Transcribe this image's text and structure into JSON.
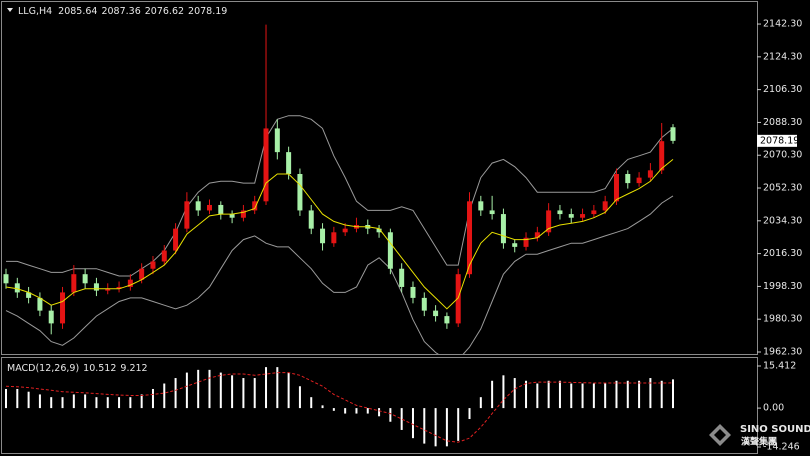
{
  "chart_data": {
    "type": "candlestick",
    "symbol": "LLG,H4",
    "header": {
      "open": 2085.64,
      "high": 2087.36,
      "low": 2076.62,
      "close": 2078.19
    },
    "up_color": "#e41414",
    "down_color": "#a8f0a8",
    "ma_color": "#e8e000",
    "band_color": "#9a9a9a",
    "ylim": [
      1961.2,
      2153.3
    ],
    "yticks": [
      {
        "value": 2142.3,
        "label": "2142.30"
      },
      {
        "value": 2124.3,
        "label": "2124.30"
      },
      {
        "value": 2106.3,
        "label": "2106.30"
      },
      {
        "value": 2088.3,
        "label": "2088.30"
      },
      {
        "value": 2070.3,
        "label": "2070.30"
      },
      {
        "value": 2052.3,
        "label": "2052.30"
      },
      {
        "value": 2034.3,
        "label": "2034.30"
      },
      {
        "value": 2016.3,
        "label": "2016.30"
      },
      {
        "value": 1998.3,
        "label": "1998.30"
      },
      {
        "value": 1980.3,
        "label": "1980.30"
      },
      {
        "value": 1962.3,
        "label": "1962.30"
      }
    ],
    "candles": [
      [
        2005,
        2008,
        1997,
        2000
      ],
      [
        2000,
        2003,
        1992,
        1995
      ],
      [
        1995,
        1998,
        1989,
        1992
      ],
      [
        1992,
        1995,
        1982,
        1985
      ],
      [
        1985,
        1988,
        1972,
        1978
      ],
      [
        1978,
        1998,
        1975,
        1995
      ],
      [
        1995,
        2010,
        1993,
        2005
      ],
      [
        2005,
        2008,
        1997,
        2000
      ],
      [
        2000,
        2003,
        1993,
        1996
      ],
      [
        1996,
        2000,
        1994,
        1997
      ],
      [
        1997,
        2001,
        1995,
        1998
      ],
      [
        1998,
        2005,
        1996,
        2002
      ],
      [
        2002,
        2011,
        2000,
        2008
      ],
      [
        2008,
        2015,
        2005,
        2012
      ],
      [
        2012,
        2021,
        2010,
        2018
      ],
      [
        2018,
        2033,
        2016,
        2030
      ],
      [
        2030,
        2050,
        2028,
        2045
      ],
      [
        2045,
        2048,
        2037,
        2040
      ],
      [
        2040,
        2046,
        2038,
        2043
      ],
      [
        2043,
        2045,
        2035,
        2038
      ],
      [
        2038,
        2040,
        2033,
        2036
      ],
      [
        2036,
        2043,
        2034,
        2040
      ],
      [
        2040,
        2048,
        2038,
        2045
      ],
      [
        2045,
        2142,
        2043,
        2085
      ],
      [
        2085,
        2090,
        2068,
        2072
      ],
      [
        2072,
        2075,
        2057,
        2060
      ],
      [
        2060,
        2063,
        2037,
        2040
      ],
      [
        2040,
        2043,
        2027,
        2030
      ],
      [
        2030,
        2033,
        2018,
        2022
      ],
      [
        2022,
        2031,
        2020,
        2028
      ],
      [
        2028,
        2033,
        2026,
        2030
      ],
      [
        2030,
        2036,
        2028,
        2032
      ],
      [
        2032,
        2035,
        2027,
        2030
      ],
      [
        2030,
        2032,
        2025,
        2028
      ],
      [
        2028,
        2030,
        2005,
        2008
      ],
      [
        2008,
        2011,
        1995,
        1998
      ],
      [
        1998,
        2001,
        1989,
        1992
      ],
      [
        1992,
        1995,
        1982,
        1985
      ],
      [
        1985,
        1988,
        1979,
        1982
      ],
      [
        1982,
        1984,
        1975,
        1978
      ],
      [
        1978,
        2008,
        1976,
        2005
      ],
      [
        2005,
        2050,
        2003,
        2045
      ],
      [
        2045,
        2048,
        2037,
        2040
      ],
      [
        2040,
        2048,
        2035,
        2038
      ],
      [
        2038,
        2041,
        2019,
        2022
      ],
      [
        2022,
        2024,
        2017,
        2020
      ],
      [
        2020,
        2028,
        2018,
        2025
      ],
      [
        2025,
        2031,
        2023,
        2028
      ],
      [
        2028,
        2044,
        2026,
        2040
      ],
      [
        2040,
        2043,
        2035,
        2038
      ],
      [
        2038,
        2041,
        2033,
        2036
      ],
      [
        2036,
        2041,
        2034,
        2038
      ],
      [
        2038,
        2043,
        2036,
        2040
      ],
      [
        2040,
        2048,
        2038,
        2045
      ],
      [
        2045,
        2063,
        2043,
        2060
      ],
      [
        2060,
        2062,
        2052,
        2055
      ],
      [
        2055,
        2061,
        2053,
        2058
      ],
      [
        2058,
        2066,
        2056,
        2062
      ],
      [
        2062,
        2088,
        2060,
        2078
      ],
      [
        2085.64,
        2087.36,
        2076.62,
        2078.19
      ]
    ],
    "ma": [
      1998,
      1997,
      1995,
      1992,
      1988,
      1990,
      1995,
      1997,
      1997,
      1997,
      1997,
      1999,
      2002,
      2006,
      2010,
      2017,
      2027,
      2032,
      2037,
      2038,
      2038,
      2039,
      2041,
      2055,
      2060,
      2060,
      2054,
      2046,
      2038,
      2034,
      2032,
      2031,
      2031,
      2030,
      2022,
      2014,
      2006,
      1998,
      1992,
      1986,
      1992,
      2010,
      2022,
      2028,
      2026,
      2024,
      2024,
      2025,
      2030,
      2032,
      2033,
      2034,
      2036,
      2039,
      2046,
      2049,
      2052,
      2056,
      2063,
      2068
    ],
    "bb_upper": [
      2012,
      2012,
      2010,
      2008,
      2006,
      2006,
      2008,
      2008,
      2008,
      2006,
      2004,
      2004,
      2008,
      2012,
      2018,
      2028,
      2042,
      2050,
      2055,
      2056,
      2056,
      2055,
      2055,
      2080,
      2090,
      2092,
      2092,
      2090,
      2085,
      2070,
      2058,
      2045,
      2040,
      2040,
      2040,
      2042,
      2040,
      2030,
      2020,
      2010,
      2010,
      2040,
      2058,
      2066,
      2068,
      2064,
      2058,
      2050,
      2050,
      2050,
      2050,
      2050,
      2050,
      2052,
      2062,
      2068,
      2070,
      2072,
      2080,
      2085
    ],
    "bb_lower": [
      1985,
      1982,
      1978,
      1974,
      1968,
      1966,
      1970,
      1976,
      1982,
      1986,
      1990,
      1992,
      1992,
      1990,
      1988,
      1986,
      1988,
      1992,
      1998,
      2008,
      2018,
      2024,
      2026,
      2022,
      2020,
      2020,
      2014,
      2008,
      2000,
      1995,
      1995,
      1998,
      2010,
      2014,
      2008,
      1995,
      1980,
      1968,
      1962,
      1958,
      1958,
      1965,
      1975,
      1990,
      2005,
      2012,
      2016,
      2016,
      2018,
      2020,
      2022,
      2022,
      2024,
      2026,
      2028,
      2030,
      2034,
      2038,
      2044,
      2048
    ],
    "macd": {
      "label": "MACD(12,26,9)",
      "value": 10.512,
      "signal_value": 9.212,
      "hist_color": "#ffffff",
      "signal_color": "#e02020",
      "ylim": [
        -16.44,
        18.34
      ],
      "yticks": [
        15.412,
        {
          "value": 0,
          "label": "0.00"
        },
        -14.246
      ],
      "histogram": [
        7,
        7,
        6,
        5,
        4,
        4,
        5,
        5,
        4,
        4,
        4,
        4,
        5,
        7,
        9,
        11,
        13,
        14,
        14,
        13,
        12,
        11,
        11,
        15,
        15,
        13,
        8,
        4,
        1,
        -1,
        -2,
        -2,
        -2,
        -3,
        -5,
        -8,
        -11,
        -13,
        -14,
        -14,
        -12,
        -4,
        4,
        10,
        12,
        11,
        10,
        9,
        10,
        10,
        9,
        9,
        9,
        9,
        10,
        10,
        10,
        11,
        10,
        10.512
      ],
      "signal": [
        8,
        7.8,
        7.5,
        7,
        6.5,
        6,
        5.8,
        5.6,
        5.3,
        5,
        4.8,
        4.6,
        4.6,
        5,
        5.5,
        6.5,
        8,
        9.5,
        11,
        12,
        12.5,
        12.5,
        12,
        12.5,
        13,
        13,
        12,
        10,
        8,
        5,
        3,
        1,
        0,
        -1,
        -2,
        -4,
        -6,
        -8,
        -10,
        -12,
        -12.5,
        -11,
        -7,
        -2,
        3,
        7,
        9,
        9.5,
        9.5,
        9.5,
        9.4,
        9.3,
        9.2,
        9.2,
        9.2,
        9.2,
        9.2,
        9.2,
        9.2,
        9.212
      ]
    },
    "watermark": {
      "brand": "SINO SOUND",
      "sub": "漢聲集團"
    }
  }
}
